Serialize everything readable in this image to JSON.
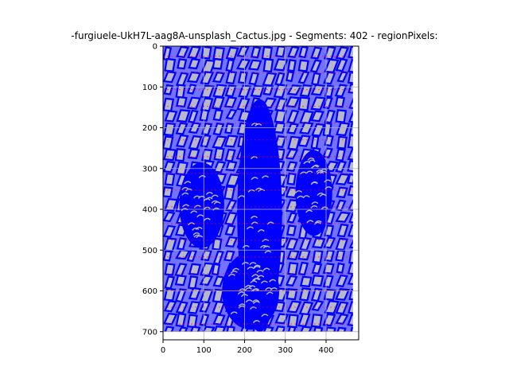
{
  "chart_data": {
    "type": "heatmap",
    "title": "-furgiuele-UkH7L-aag8A-unsplash_Cactus.jpg - Segments: 402 - regionPixels:",
    "xlabel": "",
    "ylabel": "",
    "xlim": [
      0,
      480
    ],
    "ylim": [
      720,
      0
    ],
    "y_inverted": true,
    "grid": true,
    "x_ticks": [
      0,
      100,
      200,
      300,
      400
    ],
    "y_ticks": [
      0,
      100,
      200,
      300,
      400,
      500,
      600,
      700
    ],
    "image_extent": {
      "x": [
        0,
        466
      ],
      "y": [
        0,
        700
      ]
    },
    "segment_count": 402,
    "colors": {
      "segment_outline": "#0000ff",
      "segment_fill": "#b8b8c8",
      "grid": "#b0b0b0",
      "grid_accent": "#ff0000",
      "axes": "#000000"
    }
  }
}
